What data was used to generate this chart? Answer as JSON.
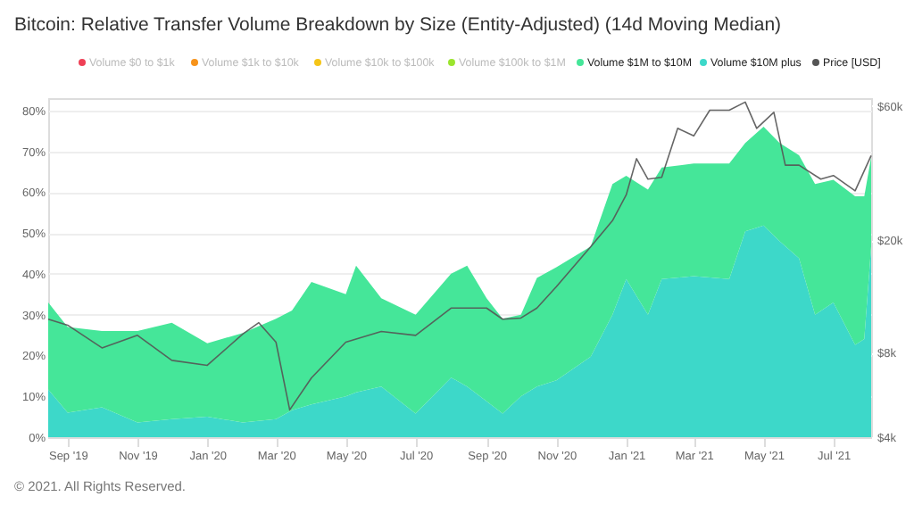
{
  "chart_data": {
    "type": "area",
    "stacked": true,
    "title": "Bitcoin: Relative Transfer Volume Breakdown by Size (Entity-Adjusted) (14d Moving Median)",
    "x": [
      "2019-08-15",
      "2019-09-01",
      "2019-10-01",
      "2019-11-01",
      "2019-12-01",
      "2020-01-01",
      "2020-02-01",
      "2020-03-01",
      "2020-03-15",
      "2020-04-01",
      "2020-05-01",
      "2020-05-10",
      "2020-06-01",
      "2020-07-01",
      "2020-08-01",
      "2020-08-15",
      "2020-09-01",
      "2020-09-15",
      "2020-10-01",
      "2020-10-15",
      "2020-11-01",
      "2020-12-01",
      "2020-12-20",
      "2021-01-01",
      "2021-01-20",
      "2021-02-01",
      "2021-03-01",
      "2021-04-01",
      "2021-04-15",
      "2021-05-01",
      "2021-05-15",
      "2021-06-01",
      "2021-06-15",
      "2021-07-01",
      "2021-07-20",
      "2021-07-28",
      "2021-08-03"
    ],
    "series": [
      {
        "name": "Volume $10M plus",
        "color": "#3dd8c9",
        "values": [
          11.7,
          6,
          7.3,
          3.6,
          4.4,
          5,
          3.6,
          4.4,
          6.6,
          8,
          10,
          11,
          12.4,
          5.8,
          14.6,
          12.4,
          8.8,
          5.8,
          10,
          12.4,
          13.9,
          19.7,
          30,
          38.7,
          30,
          38.7,
          39.4,
          38.7,
          50.4,
          51.8,
          48,
          43.8,
          30,
          33,
          22.6,
          24,
          46.7
        ]
      },
      {
        "name": "Volume $1M to $10M",
        "color": "#45e699",
        "values": [
          21.3,
          21,
          18.7,
          22.4,
          23.6,
          18,
          21.9,
          24.6,
          24.4,
          30,
          25,
          31,
          21.6,
          24.2,
          25.4,
          29.6,
          25.2,
          23.2,
          20,
          26.6,
          27.7,
          27,
          32,
          25.3,
          30.6,
          27.3,
          27.6,
          28.3,
          21.6,
          24.2,
          24,
          25.2,
          32,
          30,
          36.4,
          35,
          21.9
        ]
      },
      {
        "name": "Volume $100k to $1M",
        "color": "#9be52e",
        "values": [
          null,
          null,
          null,
          null,
          null,
          null,
          null,
          null,
          null,
          null,
          null,
          null,
          null,
          null,
          null,
          null,
          null,
          null,
          null,
          null,
          null,
          null,
          null,
          null,
          null,
          null,
          null,
          null,
          null,
          null,
          null,
          null,
          null,
          null,
          null,
          null,
          null
        ]
      },
      {
        "name": "Volume $10k to $100k",
        "color": "#f5c518",
        "values": [
          null,
          null,
          null,
          null,
          null,
          null,
          null,
          null,
          null,
          null,
          null,
          null,
          null,
          null,
          null,
          null,
          null,
          null,
          null,
          null,
          null,
          null,
          null,
          null,
          null,
          null,
          null,
          null,
          null,
          null,
          null,
          null,
          null,
          null,
          null,
          null,
          null
        ]
      },
      {
        "name": "Volume $1k to $10k",
        "color": "#f7931a",
        "values": [
          null,
          null,
          null,
          null,
          null,
          null,
          null,
          null,
          null,
          null,
          null,
          null,
          null,
          null,
          null,
          null,
          null,
          null,
          null,
          null,
          null,
          null,
          null,
          null,
          null,
          null,
          null,
          null,
          null,
          null,
          null,
          null,
          null,
          null,
          null,
          null,
          null
        ]
      },
      {
        "name": "Volume $0 to $1k",
        "color": "#ef4056",
        "values": [
          null,
          null,
          null,
          null,
          null,
          null,
          null,
          null,
          null,
          null,
          null,
          null,
          null,
          null,
          null,
          null,
          null,
          null,
          null,
          null,
          null,
          null,
          null,
          null,
          null,
          null,
          null,
          null,
          null,
          null,
          null,
          null,
          null,
          null,
          null,
          null,
          null
        ]
      },
      {
        "name": "Price [USD]",
        "type": "line",
        "axis": "y2",
        "color": "#555555",
        "x": [
          "2019-08-15",
          "2019-09-01",
          "2019-10-01",
          "2019-11-01",
          "2019-12-01",
          "2020-01-01",
          "2020-02-01",
          "2020-02-15",
          "2020-03-01",
          "2020-03-13",
          "2020-04-01",
          "2020-05-01",
          "2020-06-01",
          "2020-07-01",
          "2020-08-01",
          "2020-09-01",
          "2020-09-15",
          "2020-10-01",
          "2020-10-15",
          "2020-11-01",
          "2020-12-01",
          "2020-12-20",
          "2021-01-01",
          "2021-01-10",
          "2021-01-20",
          "2021-02-01",
          "2021-02-15",
          "2021-03-01",
          "2021-03-15",
          "2021-04-01",
          "2021-04-15",
          "2021-04-25",
          "2021-05-10",
          "2021-05-20",
          "2021-06-01",
          "2021-06-20",
          "2021-07-01",
          "2021-07-20",
          "2021-08-03"
        ],
        "values": [
          10500,
          10000,
          8300,
          9200,
          7500,
          7200,
          9300,
          10200,
          8700,
          5000,
          6500,
          8700,
          9500,
          9200,
          11500,
          11500,
          10500,
          10600,
          11500,
          13700,
          19000,
          23500,
          29000,
          39000,
          33000,
          33500,
          50000,
          47000,
          58000,
          58000,
          62000,
          50000,
          57000,
          37000,
          37000,
          33000,
          34000,
          30000,
          40000
        ]
      }
    ],
    "xlim": [
      "2019-08-15",
      "2021-08-03"
    ],
    "xticks": [
      {
        "value": "2019-09-01",
        "label": "Sep '19"
      },
      {
        "value": "2019-11-01",
        "label": "Nov '19"
      },
      {
        "value": "2020-01-01",
        "label": "Jan '20"
      },
      {
        "value": "2020-03-01",
        "label": "Mar '20"
      },
      {
        "value": "2020-05-01",
        "label": "May '20"
      },
      {
        "value": "2020-07-01",
        "label": "Jul '20"
      },
      {
        "value": "2020-09-01",
        "label": "Sep '20"
      },
      {
        "value": "2020-11-01",
        "label": "Nov '20"
      },
      {
        "value": "2021-01-01",
        "label": "Jan '21"
      },
      {
        "value": "2021-03-01",
        "label": "Mar '21"
      },
      {
        "value": "2021-05-01",
        "label": "May '21"
      },
      {
        "value": "2021-07-01",
        "label": "Jul '21"
      }
    ],
    "ylim": [
      0,
      83
    ],
    "yticks": [
      {
        "value": 0,
        "label": "0%"
      },
      {
        "value": 10,
        "label": "10%"
      },
      {
        "value": 20,
        "label": "20%"
      },
      {
        "value": 30,
        "label": "30%"
      },
      {
        "value": 40,
        "label": "40%"
      },
      {
        "value": 50,
        "label": "50%"
      },
      {
        "value": 60,
        "label": "60%"
      },
      {
        "value": 70,
        "label": "70%"
      },
      {
        "value": 80,
        "label": "80%"
      }
    ],
    "log": "y2",
    "y2lim": [
      4000,
      64000
    ],
    "y2ticks": [
      {
        "value": 4000,
        "label": "$4k"
      },
      {
        "value": 8000,
        "label": "$8k"
      },
      {
        "value": 20000,
        "label": "$20k"
      },
      {
        "value": 60000,
        "label": "$60k"
      }
    ],
    "grid": "y",
    "legend": "top",
    "annotations": [
      "© 2021. All Rights Reserved."
    ]
  }
}
